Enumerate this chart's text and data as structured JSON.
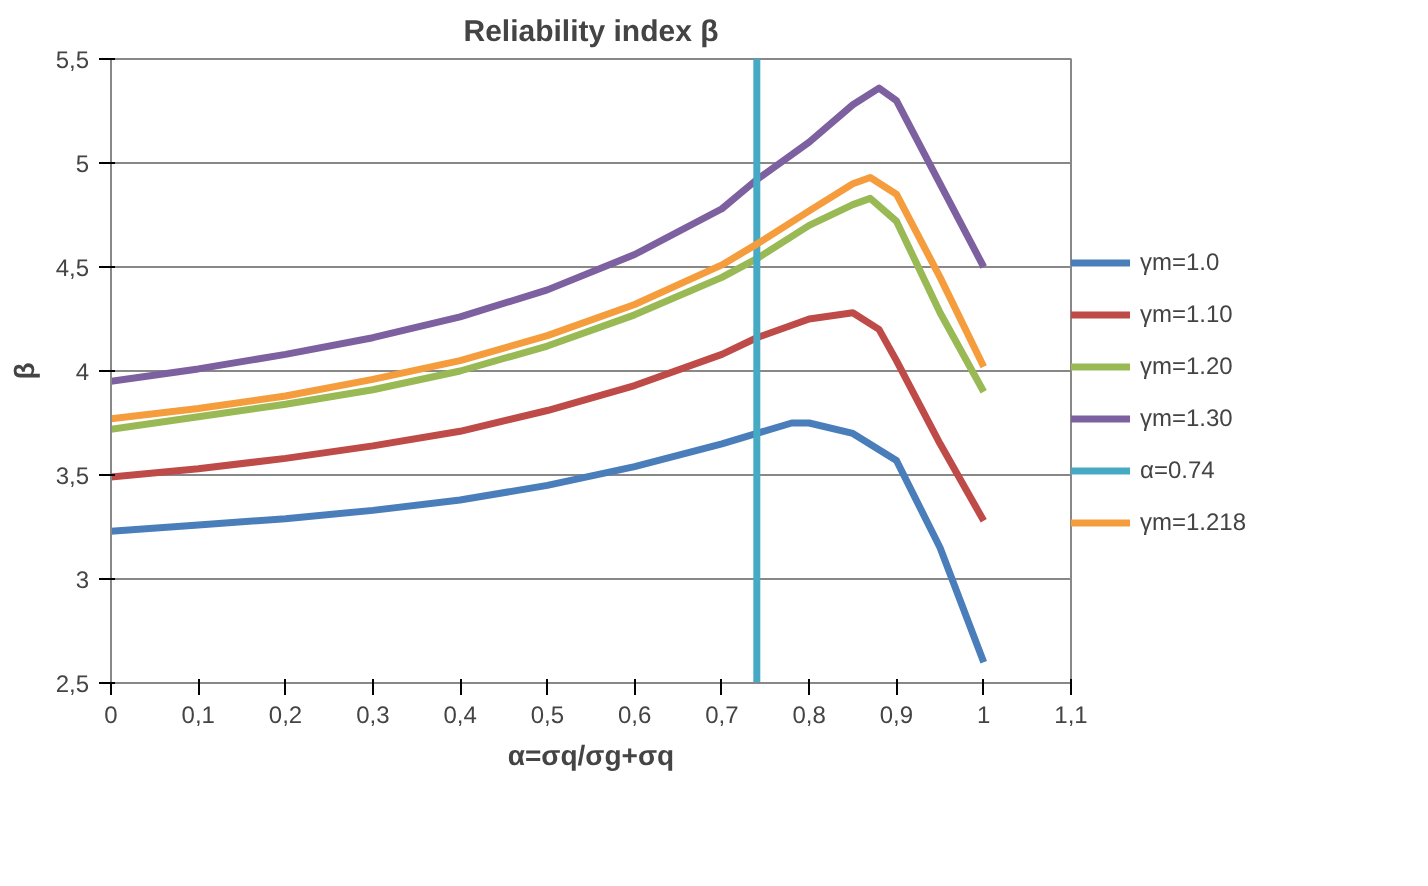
{
  "chart_data": {
    "type": "line",
    "title": "Reliability index β",
    "xlabel": "α=σq/σg+σq",
    "ylabel": "β",
    "xlim": [
      0,
      1.1
    ],
    "ylim": [
      2.5,
      5.5
    ],
    "xticks": [
      0,
      {
        "value": 0.1,
        "label": "0,1"
      },
      {
        "value": 0.2,
        "label": "0,2"
      },
      {
        "value": 0.3,
        "label": "0,3"
      },
      {
        "value": 0.4,
        "label": "0,4"
      },
      {
        "value": 0.5,
        "label": "0,5"
      },
      {
        "value": 0.6,
        "label": "0,6"
      },
      {
        "value": 0.7,
        "label": "0,7"
      },
      {
        "value": 0.8,
        "label": "0,8"
      },
      {
        "value": 0.9,
        "label": "0,9"
      },
      1,
      {
        "value": 1.1,
        "label": "1,1"
      }
    ],
    "yticks": [
      {
        "value": 2.5,
        "label": "2,5"
      },
      3,
      {
        "value": 3.5,
        "label": "3,5"
      },
      4,
      {
        "value": 4.5,
        "label": "4,5"
      },
      5,
      {
        "value": 5.5,
        "label": "5,5"
      }
    ],
    "grid": "y",
    "legend": "right",
    "series": [
      {
        "name": "γm=1.0",
        "color": "#4a7ebb",
        "x": [
          0,
          0.1,
          0.2,
          0.3,
          0.4,
          0.5,
          0.6,
          0.7,
          0.74,
          0.78,
          0.8,
          0.85,
          0.9,
          0.95,
          1
        ],
        "values": [
          3.23,
          3.26,
          3.29,
          3.33,
          3.38,
          3.45,
          3.54,
          3.65,
          3.7,
          3.75,
          3.75,
          3.7,
          3.57,
          3.15,
          2.6
        ]
      },
      {
        "name": "γm=1.10",
        "color": "#be4b48",
        "x": [
          0,
          0.1,
          0.2,
          0.3,
          0.4,
          0.5,
          0.6,
          0.7,
          0.74,
          0.8,
          0.85,
          0.88,
          0.9,
          0.95,
          1
        ],
        "values": [
          3.49,
          3.53,
          3.58,
          3.64,
          3.71,
          3.81,
          3.93,
          4.08,
          4.16,
          4.25,
          4.28,
          4.2,
          4.05,
          3.65,
          3.28
        ]
      },
      {
        "name": "γm=1.20",
        "color": "#98b954",
        "x": [
          0,
          0.1,
          0.2,
          0.3,
          0.4,
          0.5,
          0.6,
          0.7,
          0.74,
          0.8,
          0.85,
          0.87,
          0.9,
          0.95,
          1
        ],
        "values": [
          3.72,
          3.78,
          3.84,
          3.91,
          4.0,
          4.12,
          4.27,
          4.45,
          4.54,
          4.7,
          4.8,
          4.83,
          4.72,
          4.28,
          3.9
        ]
      },
      {
        "name": "γm=1.30",
        "color": "#7d60a0",
        "x": [
          0,
          0.1,
          0.2,
          0.3,
          0.4,
          0.5,
          0.6,
          0.7,
          0.74,
          0.8,
          0.85,
          0.88,
          0.9,
          0.95,
          1
        ],
        "values": [
          3.95,
          4.01,
          4.08,
          4.16,
          4.26,
          4.39,
          4.56,
          4.78,
          4.92,
          5.1,
          5.28,
          5.36,
          5.3,
          4.9,
          4.5
        ]
      },
      {
        "name": "α=0.74",
        "color": "#46aac5",
        "x": [
          0.74,
          0.74
        ],
        "values": [
          2.5,
          5.5
        ]
      },
      {
        "name": "γm=1.218",
        "color": "#f59d3d",
        "x": [
          0,
          0.1,
          0.2,
          0.3,
          0.4,
          0.5,
          0.6,
          0.7,
          0.74,
          0.8,
          0.85,
          0.87,
          0.9,
          0.95,
          1
        ],
        "values": [
          3.77,
          3.82,
          3.88,
          3.96,
          4.05,
          4.17,
          4.32,
          4.51,
          4.61,
          4.77,
          4.9,
          4.93,
          4.85,
          4.45,
          4.02
        ]
      }
    ]
  }
}
